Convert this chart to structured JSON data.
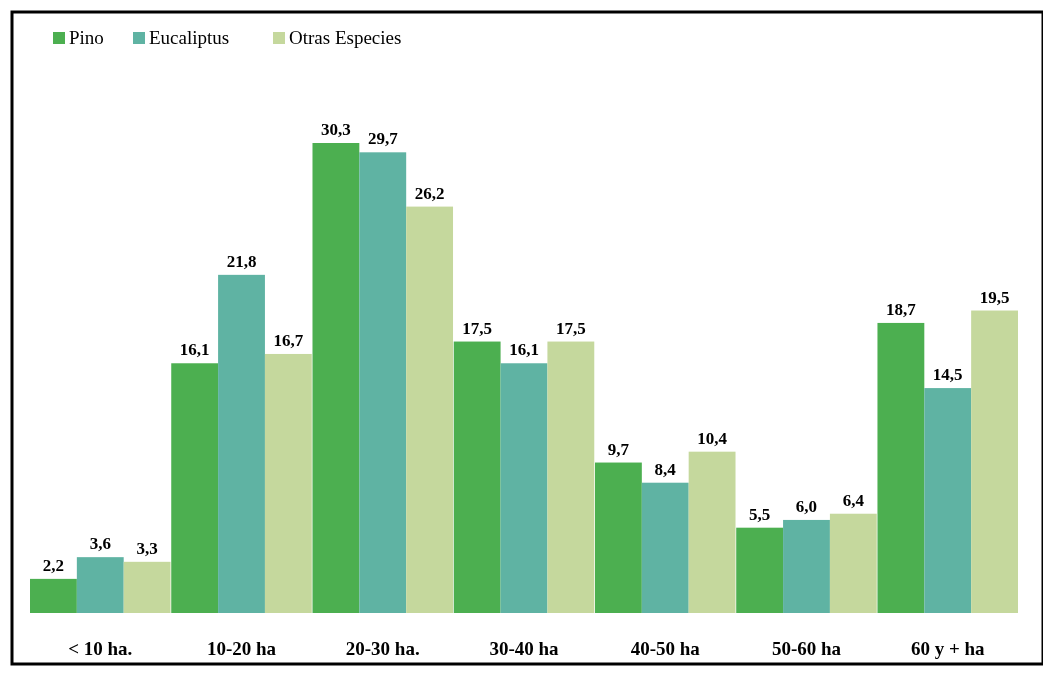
{
  "chart_data": {
    "type": "bar",
    "categories": [
      "< 10 ha.",
      "10-20 ha",
      "20-30 ha.",
      "30-40 ha",
      "40-50 ha",
      "50-60 ha",
      "60 y + ha"
    ],
    "series": [
      {
        "name": "Pino",
        "color": "#4caf50",
        "values": [
          2.2,
          16.1,
          30.3,
          17.5,
          9.7,
          5.5,
          18.7
        ],
        "value_labels": [
          "2,2",
          "16,1",
          "30,3",
          "17,5",
          "9,7",
          "5,5",
          "18,7"
        ]
      },
      {
        "name": "Eucaliptus",
        "color": "#5fb3a3",
        "values": [
          3.6,
          21.8,
          29.7,
          16.1,
          8.4,
          6.0,
          14.5
        ],
        "value_labels": [
          "3,6",
          "21,8",
          "29,7",
          "16,1",
          "8,4",
          "6,0",
          "14,5"
        ]
      },
      {
        "name": "Otras Especies",
        "color": "#c5d89d",
        "values": [
          3.3,
          16.7,
          26.2,
          17.5,
          10.4,
          6.4,
          19.5
        ],
        "value_labels": [
          "3,3",
          "16,7",
          "26,2",
          "17,5",
          "10,4",
          "6,4",
          "19,5"
        ]
      }
    ],
    "legend": "top left"
  }
}
